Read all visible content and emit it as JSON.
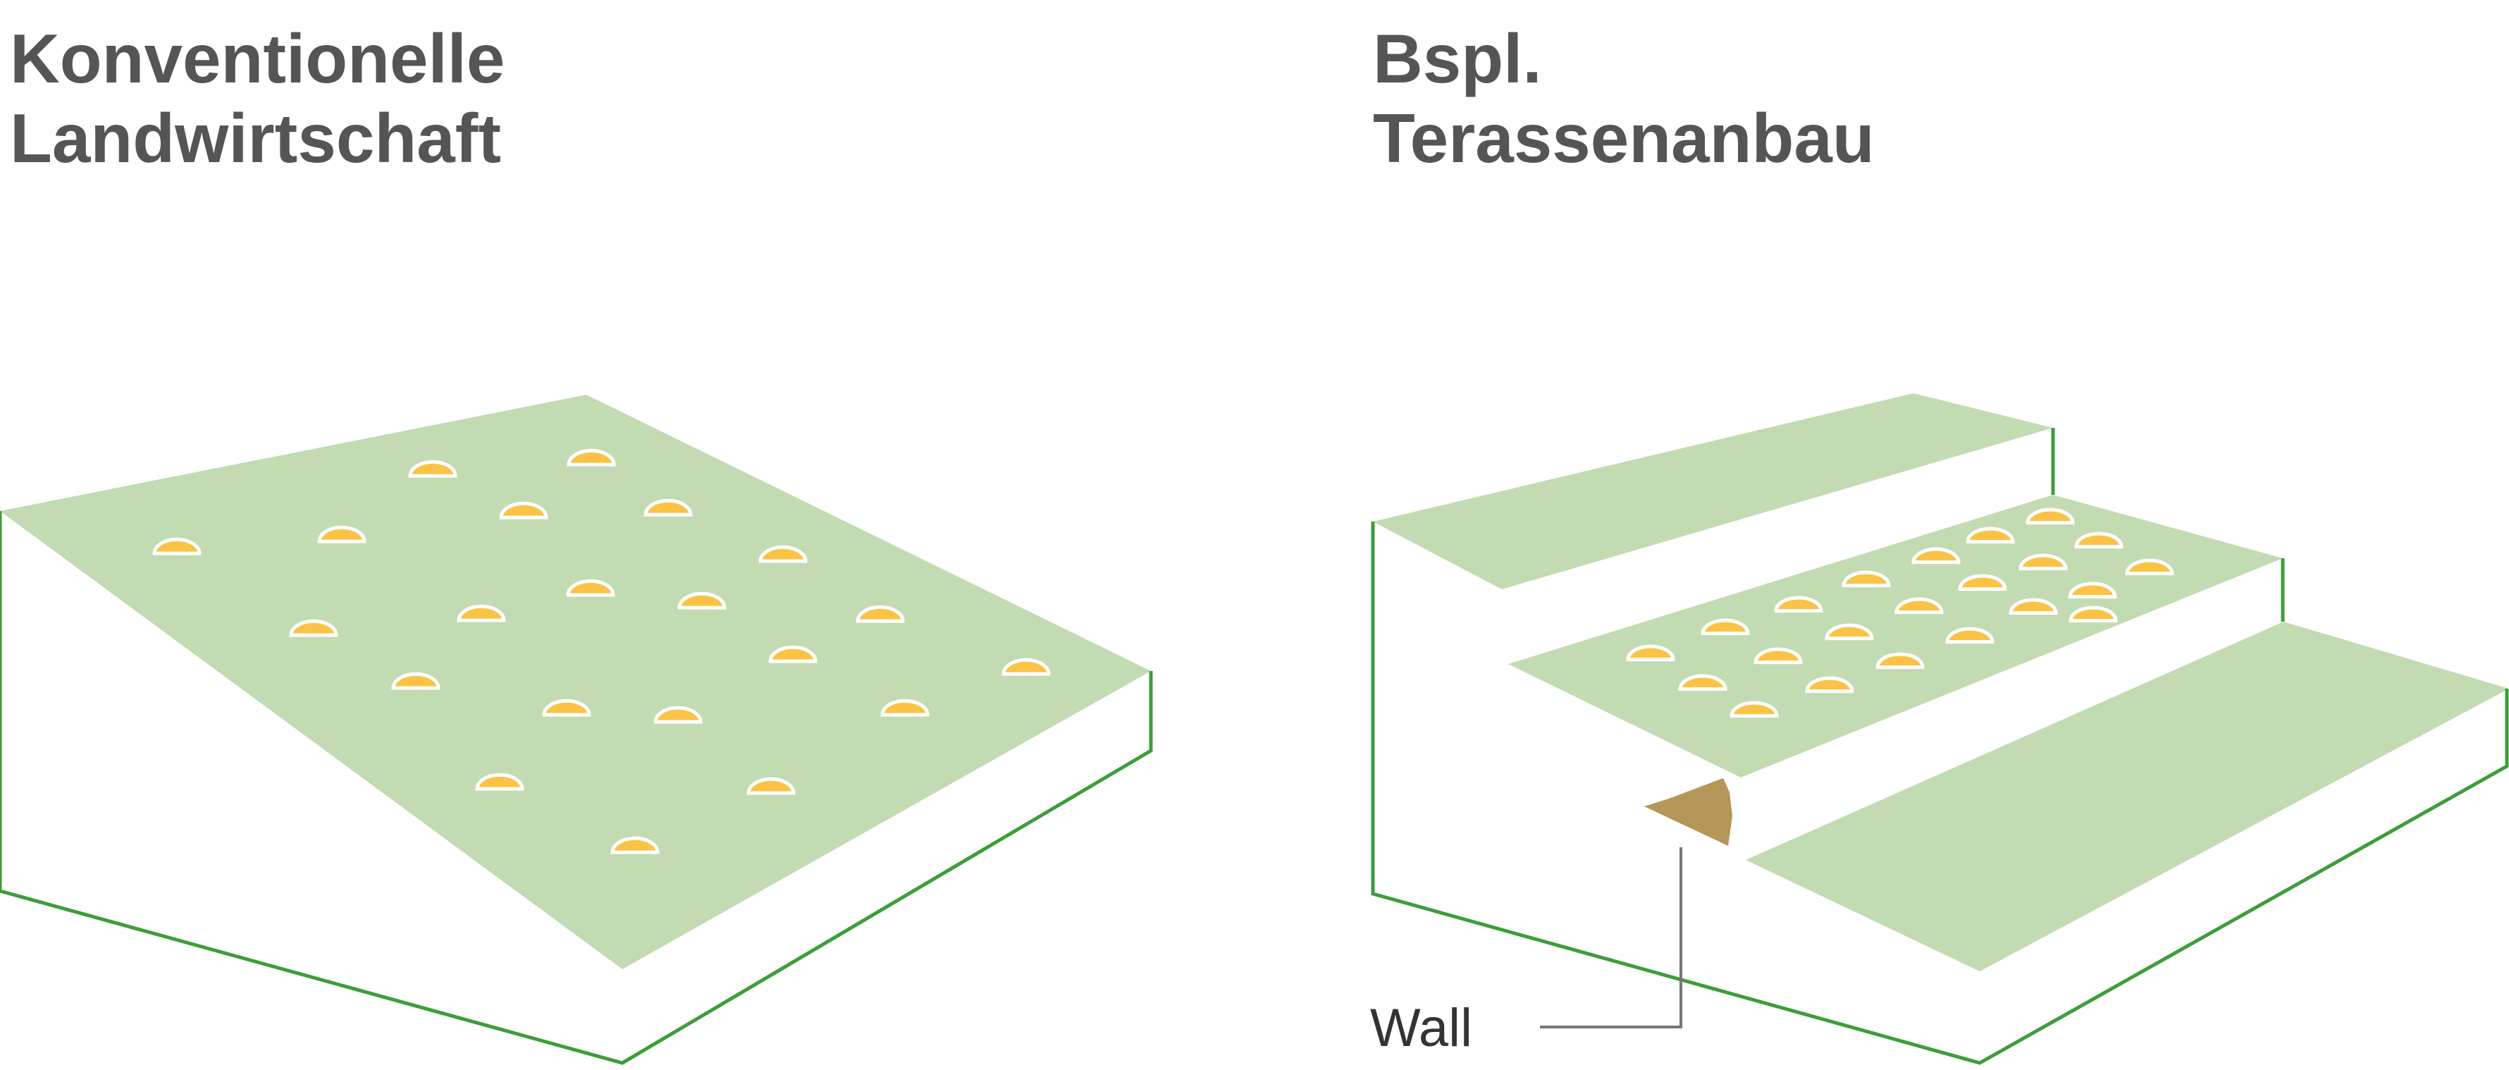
{
  "titles": {
    "left": {
      "line1": "Konventionelle",
      "line2": "Landwirtschaft"
    },
    "right": {
      "line1": "Bspl.",
      "line2": "Terassenanbau"
    }
  },
  "labels": {
    "wall": "Wall"
  },
  "colors": {
    "field_fill": "#c2dbb2",
    "outline": "#3d9d3a",
    "plant_fill": "#fbc346",
    "plant_outline": "#ffffff",
    "wall_fill": "#b39658",
    "leader_line": "#777777",
    "title_text": "#555555"
  }
}
